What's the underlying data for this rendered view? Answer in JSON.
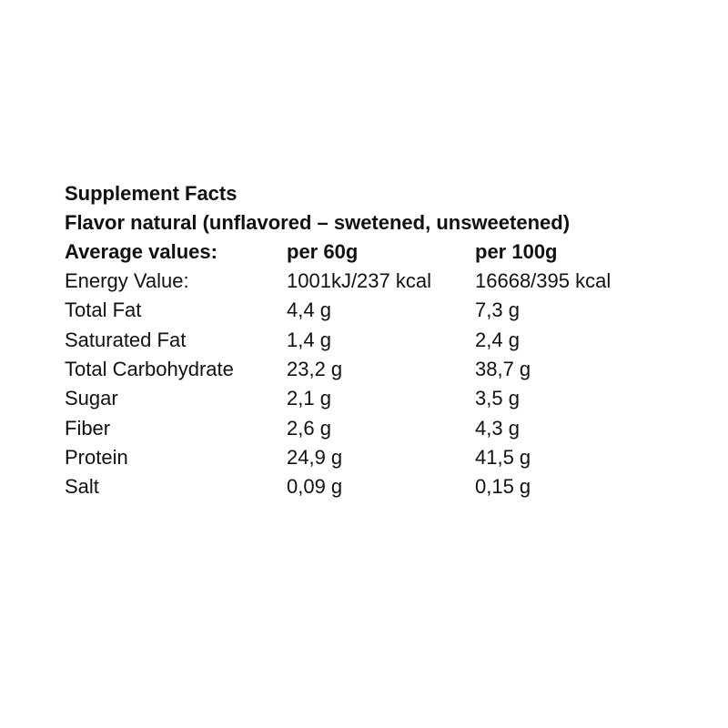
{
  "title": "Supplement Facts",
  "subtitle": "Flavor natural (unflavored – swetened, unsweetened)",
  "table": {
    "header": [
      "Average values:",
      "per 60g",
      "per 100g"
    ],
    "rows": [
      [
        "Energy Value:",
        "1001kJ/237 kcal",
        "16668/395 kcal"
      ],
      [
        "Total Fat",
        "4,4 g",
        "7,3 g"
      ],
      [
        "Saturated Fat",
        "1,4 g",
        "2,4 g"
      ],
      [
        "Total Carbohydrate",
        "23,2 g",
        "38,7 g"
      ],
      [
        "Sugar",
        "2,1 g",
        "3,5 g"
      ],
      [
        "Fiber",
        "2,6 g",
        "4,3 g"
      ],
      [
        "Protein",
        "24,9 g",
        "41,5 g"
      ],
      [
        "Salt",
        "0,09 g",
        "0,15 g"
      ]
    ]
  }
}
